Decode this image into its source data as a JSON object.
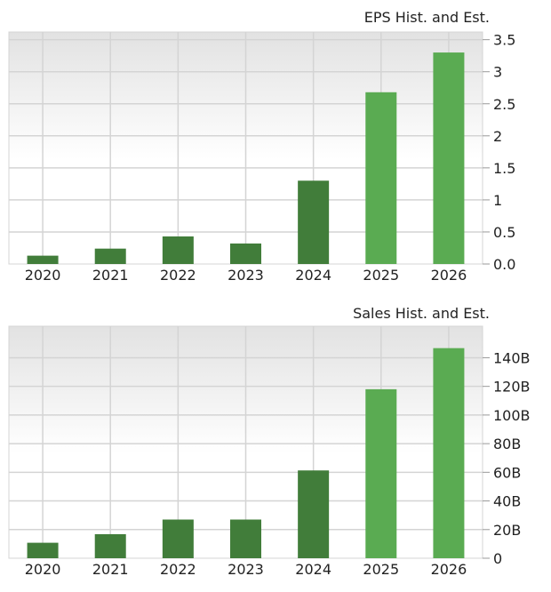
{
  "colors": {
    "historical": "#417d3a",
    "estimate": "#5aab52",
    "grid": "#d4d4d4",
    "bg_top": "#e2e2e2"
  },
  "chart_data": [
    {
      "type": "bar",
      "title": "EPS Hist. and Est.",
      "categories": [
        "2020",
        "2021",
        "2022",
        "2023",
        "2024",
        "2025",
        "2026"
      ],
      "values": [
        0.13,
        0.24,
        0.43,
        0.32,
        1.3,
        2.68,
        3.3
      ],
      "estimate_flags": [
        false,
        false,
        false,
        false,
        false,
        true,
        true
      ],
      "ylim": [
        0,
        3.62
      ],
      "yticks": [
        0,
        0.5,
        1,
        1.5,
        2,
        2.5,
        3,
        3.5
      ],
      "ytick_labels": [
        "0.0",
        "0.5",
        "1",
        "1.5",
        "2",
        "2.5",
        "3",
        "3.5"
      ],
      "grid": true,
      "yaxis_side": "right"
    },
    {
      "type": "bar",
      "title": "Sales Hist. and Est.",
      "categories": [
        "2020",
        "2021",
        "2022",
        "2023",
        "2024",
        "2025",
        "2026"
      ],
      "values": [
        10.8,
        16.8,
        27,
        27,
        61.3,
        118,
        146.7
      ],
      "unit": "B",
      "estimate_flags": [
        false,
        false,
        false,
        false,
        false,
        true,
        true
      ],
      "ylim": [
        0,
        162
      ],
      "yticks": [
        0,
        20,
        40,
        60,
        80,
        100,
        120,
        140
      ],
      "ytick_labels": [
        "0",
        "20B",
        "40B",
        "60B",
        "80B",
        "100B",
        "120B",
        "140B"
      ],
      "grid": true,
      "yaxis_side": "right"
    }
  ]
}
